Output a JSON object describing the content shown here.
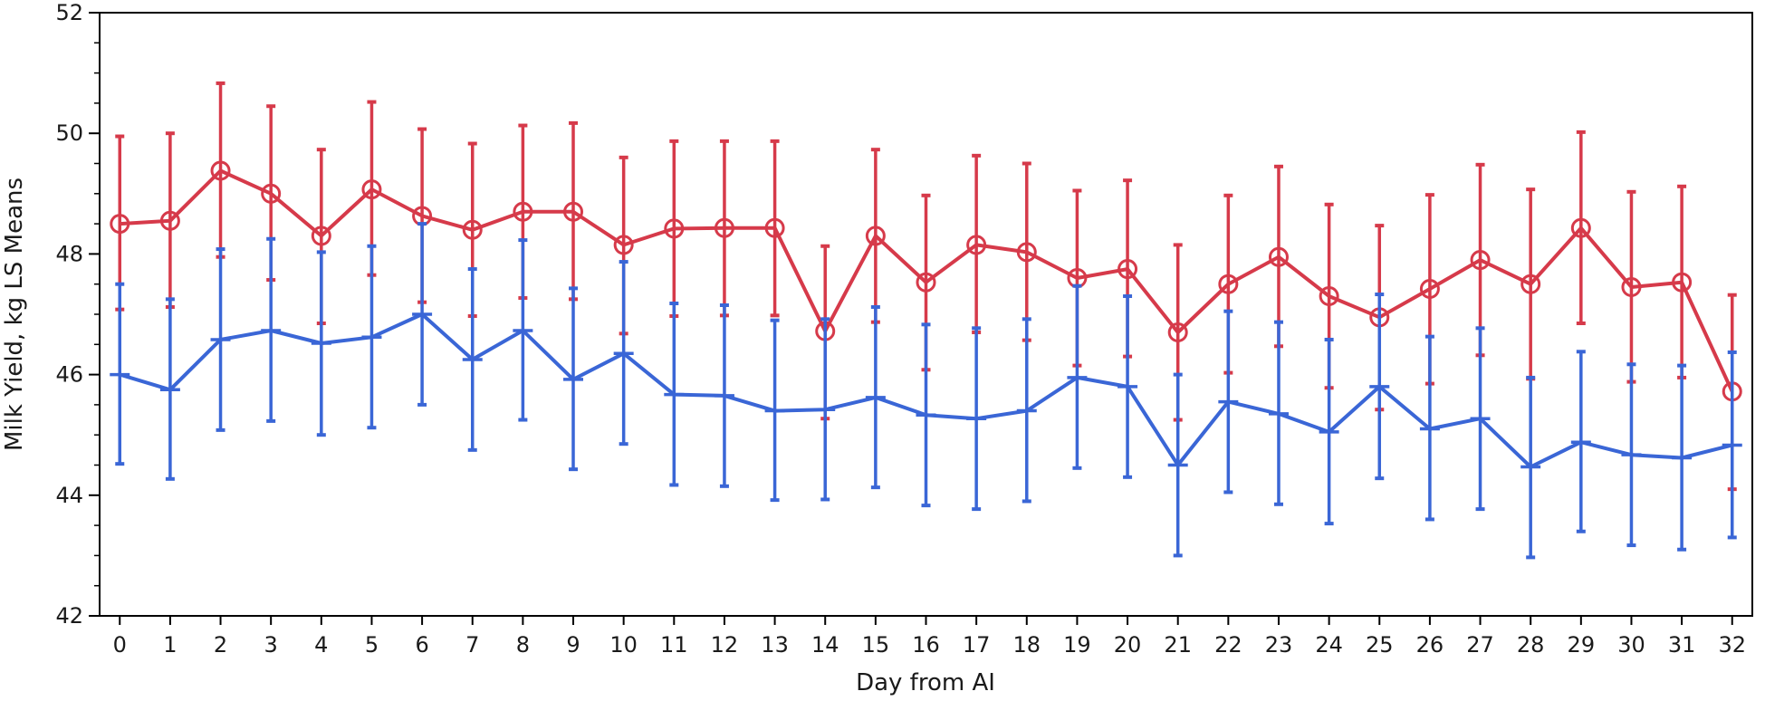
{
  "chart_data": {
    "type": "line",
    "xlabel": "Day from AI",
    "ylabel": "Milk Yield, kg LS Means",
    "xlim": [
      -0.4,
      32.4
    ],
    "ylim": [
      42,
      52
    ],
    "x_ticks": [
      "0",
      "1",
      "2",
      "3",
      "4",
      "5",
      "6",
      "7",
      "8",
      "9",
      "10",
      "11",
      "12",
      "13",
      "14",
      "15",
      "16",
      "17",
      "18",
      "19",
      "20",
      "21",
      "22",
      "23",
      "24",
      "25",
      "26",
      "27",
      "28",
      "29",
      "30",
      "31",
      "32"
    ],
    "y_ticks": [
      "42",
      "44",
      "46",
      "48",
      "50",
      "52"
    ],
    "x": [
      0,
      1,
      2,
      3,
      4,
      5,
      6,
      7,
      8,
      9,
      10,
      11,
      12,
      13,
      14,
      15,
      16,
      17,
      18,
      19,
      20,
      21,
      22,
      23,
      24,
      25,
      26,
      27,
      28,
      29,
      30,
      31,
      32
    ],
    "grid": false,
    "series": [
      {
        "color": "#d63a4a",
        "marker": "circle",
        "values": [
          48.5,
          48.55,
          49.38,
          49.0,
          48.3,
          49.07,
          48.63,
          48.4,
          48.7,
          48.7,
          48.15,
          48.42,
          48.43,
          48.43,
          46.72,
          48.3,
          47.53,
          48.15,
          48.03,
          47.6,
          47.75,
          46.7,
          47.5,
          47.95,
          47.3,
          46.95,
          47.42,
          47.9,
          47.5,
          48.43,
          47.45,
          47.53,
          45.72
        ],
        "upper": [
          49.95,
          50.0,
          50.83,
          50.45,
          49.73,
          50.52,
          50.07,
          49.83,
          50.13,
          50.17,
          49.6,
          49.87,
          49.87,
          49.87,
          48.13,
          49.73,
          48.97,
          49.63,
          49.5,
          49.05,
          49.22,
          48.15,
          48.97,
          49.45,
          48.82,
          48.47,
          48.98,
          49.48,
          49.07,
          50.02,
          49.03,
          49.12,
          47.32
        ],
        "lower": [
          47.08,
          47.12,
          47.95,
          47.57,
          46.85,
          47.65,
          47.2,
          46.97,
          47.27,
          47.25,
          46.68,
          46.97,
          46.98,
          46.98,
          45.27,
          46.87,
          46.08,
          46.7,
          46.57,
          46.15,
          46.3,
          45.25,
          46.03,
          46.47,
          45.78,
          45.42,
          45.85,
          46.32,
          45.93,
          46.85,
          45.88,
          45.95,
          44.1
        ]
      },
      {
        "color": "#3a66d6",
        "marker": "dash",
        "values": [
          46.0,
          45.75,
          46.58,
          46.73,
          46.52,
          46.62,
          47.0,
          46.25,
          46.73,
          45.92,
          46.35,
          45.67,
          45.65,
          45.4,
          45.42,
          45.62,
          45.33,
          45.27,
          45.4,
          45.95,
          45.8,
          44.5,
          45.55,
          45.35,
          45.05,
          45.8,
          45.1,
          45.27,
          44.47,
          44.88,
          44.67,
          44.62,
          44.83
        ],
        "upper": [
          47.5,
          47.25,
          48.08,
          48.25,
          48.03,
          48.13,
          48.5,
          47.75,
          48.23,
          47.43,
          47.87,
          47.18,
          47.15,
          46.9,
          46.92,
          47.12,
          46.83,
          46.77,
          46.92,
          47.47,
          47.3,
          46.0,
          47.05,
          46.87,
          46.58,
          47.33,
          46.63,
          46.77,
          45.95,
          46.38,
          46.17,
          46.15,
          46.37
        ],
        "lower": [
          44.52,
          44.27,
          45.08,
          45.23,
          45.0,
          45.12,
          45.5,
          44.75,
          45.25,
          44.43,
          44.85,
          44.17,
          44.15,
          43.92,
          43.93,
          44.13,
          43.83,
          43.77,
          43.9,
          44.45,
          44.3,
          43.0,
          44.05,
          43.85,
          43.53,
          44.28,
          43.6,
          43.77,
          42.97,
          43.4,
          43.17,
          43.1,
          43.3
        ]
      }
    ]
  }
}
